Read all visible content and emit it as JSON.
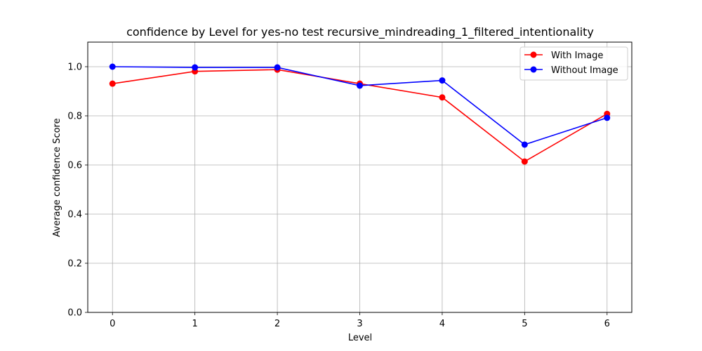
{
  "chart_data": {
    "type": "line",
    "title": "confidence by Level for yes-no test recursive_mindreading_1_filtered_intentionality",
    "xlabel": "Level",
    "ylabel": "Average confidence Score",
    "x": [
      0,
      1,
      2,
      3,
      4,
      5,
      6
    ],
    "x_tick_labels": [
      "0",
      "1",
      "2",
      "3",
      "4",
      "5",
      "6"
    ],
    "y_ticks": [
      0.0,
      0.2,
      0.4,
      0.6,
      0.8,
      1.0
    ],
    "y_tick_labels": [
      "0.0",
      "0.2",
      "0.4",
      "0.6",
      "0.8",
      "1.0"
    ],
    "xlim": [
      -0.3,
      6.3
    ],
    "ylim": [
      0.0,
      1.1
    ],
    "grid": true,
    "legend_position": "top-right",
    "series": [
      {
        "name": "With Image",
        "color": "#ff0000",
        "values": [
          0.931,
          0.981,
          0.988,
          0.931,
          0.875,
          0.614,
          0.808
        ]
      },
      {
        "name": "Without Image",
        "color": "#0000ff",
        "values": [
          1.0,
          0.997,
          0.997,
          0.923,
          0.944,
          0.683,
          0.792
        ]
      }
    ]
  }
}
